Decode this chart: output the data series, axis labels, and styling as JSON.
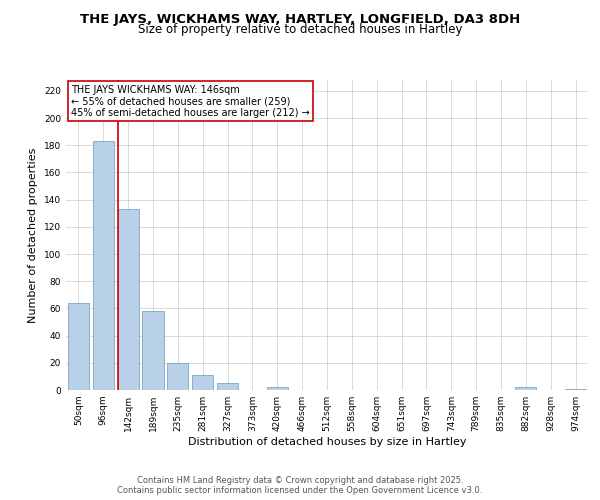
{
  "title": "THE JAYS, WICKHAMS WAY, HARTLEY, LONGFIELD, DA3 8DH",
  "subtitle": "Size of property relative to detached houses in Hartley",
  "xlabel": "Distribution of detached houses by size in Hartley",
  "ylabel": "Number of detached properties",
  "bar_color": "#b8d0e8",
  "bar_edge_color": "#6699bb",
  "categories": [
    "50sqm",
    "96sqm",
    "142sqm",
    "189sqm",
    "235sqm",
    "281sqm",
    "327sqm",
    "373sqm",
    "420sqm",
    "466sqm",
    "512sqm",
    "558sqm",
    "604sqm",
    "651sqm",
    "697sqm",
    "743sqm",
    "789sqm",
    "835sqm",
    "882sqm",
    "928sqm",
    "974sqm"
  ],
  "values": [
    64,
    183,
    133,
    58,
    20,
    11,
    5,
    0,
    2,
    0,
    0,
    0,
    0,
    0,
    0,
    0,
    0,
    0,
    2,
    0,
    1
  ],
  "ylim": [
    0,
    228
  ],
  "yticks": [
    0,
    20,
    40,
    60,
    80,
    100,
    120,
    140,
    160,
    180,
    200,
    220
  ],
  "vline_color": "#cc0000",
  "annotation_line1": "THE JAYS WICKHAMS WAY: 146sqm",
  "annotation_line2": "← 55% of detached houses are smaller (259)",
  "annotation_line3": "45% of semi-detached houses are larger (212) →",
  "annotation_box_color": "#cc0000",
  "footer_line1": "Contains HM Land Registry data © Crown copyright and database right 2025.",
  "footer_line2": "Contains public sector information licensed under the Open Government Licence v3.0.",
  "background_color": "#ffffff",
  "grid_color": "#cccccc",
  "title_fontsize": 9.5,
  "subtitle_fontsize": 8.5,
  "label_fontsize": 8,
  "tick_fontsize": 6.5,
  "footer_fontsize": 6,
  "ann_fontsize": 7
}
